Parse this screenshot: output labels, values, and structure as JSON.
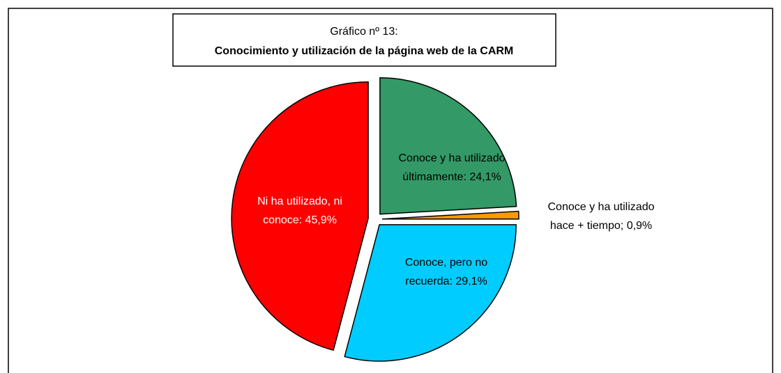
{
  "chart_data": {
    "type": "pie",
    "title": "Gráfico nº 13:",
    "subtitle": "Conocimiento y utilización de la página web de la CARM",
    "values": [
      24.1,
      0.9,
      29.1,
      45.9
    ],
    "value_labels": [
      [
        "Conoce y ha utilizado",
        "últimamente: 24,1%"
      ],
      [
        "Conoce y ha utilizado",
        "hace + tiempo; 0,9%"
      ],
      [
        "Conoce, pero no",
        "recuerda: 29,1%"
      ],
      [
        "Ni ha utilizado, ni",
        "conoce: 45,9%"
      ]
    ],
    "colors": [
      "#339966",
      "#ff9900",
      "#00ccff",
      "#ff0000"
    ]
  }
}
